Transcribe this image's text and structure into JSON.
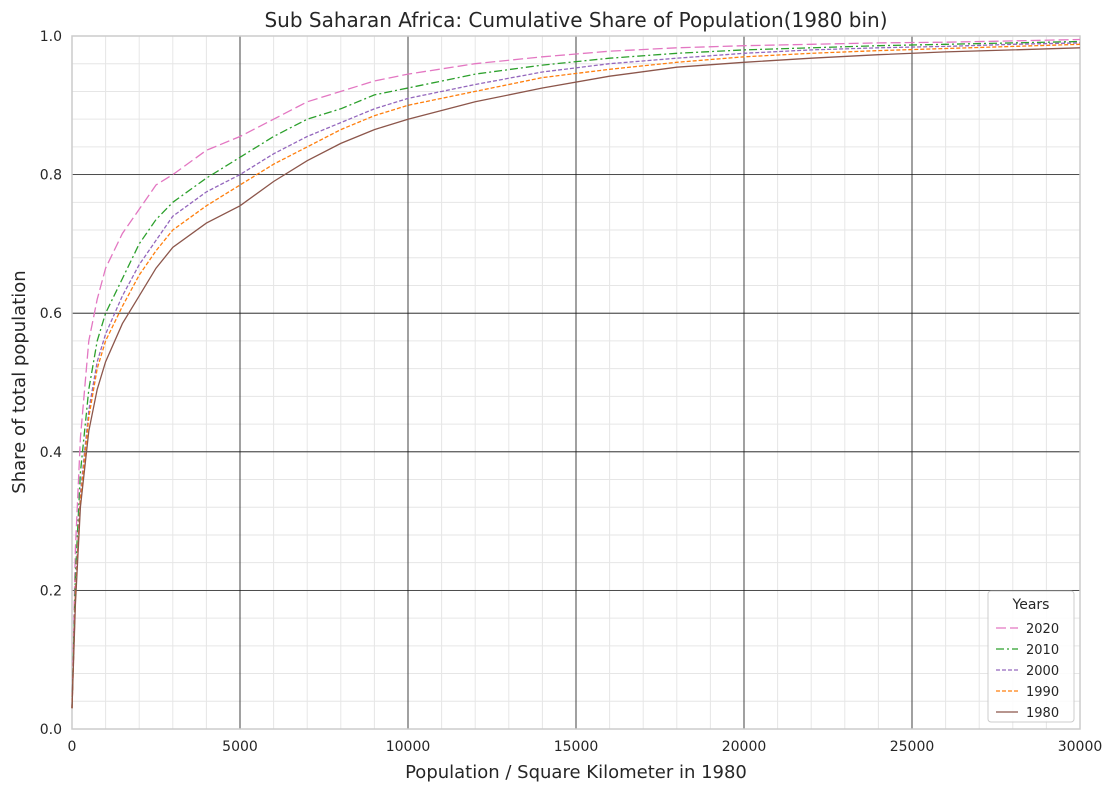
{
  "chart_data": {
    "type": "line",
    "title": "Sub Saharan Africa: Cumulative Share of Population(1980 bin)",
    "xlabel": "Population / Square Kilometer in 1980",
    "ylabel": "Share of total population",
    "xlim": [
      0,
      30000
    ],
    "ylim": [
      0,
      1.0
    ],
    "x_ticks": [
      0,
      5000,
      10000,
      15000,
      20000,
      25000,
      30000
    ],
    "x_tick_labels": [
      "0",
      "5000",
      "10000",
      "15000",
      "20000",
      "25000",
      "30000"
    ],
    "y_ticks": [
      0,
      0.2,
      0.4,
      0.6,
      0.8,
      1.0
    ],
    "y_tick_labels": [
      "0.0",
      "0.2",
      "0.4",
      "0.6",
      "0.8",
      "1.0"
    ],
    "grid": true,
    "minor_grid": true,
    "legend": {
      "title": "Years",
      "position": "lower-right"
    },
    "x": [
      0,
      100,
      250,
      500,
      750,
      1000,
      1500,
      2000,
      2500,
      3000,
      4000,
      5000,
      6000,
      7000,
      8000,
      9000,
      10000,
      12000,
      14000,
      16000,
      18000,
      20000,
      22000,
      24000,
      26000,
      28000,
      30000
    ],
    "series": [
      {
        "name": "2020",
        "color": "#e377c2",
        "dash": "10,4",
        "values": [
          0.03,
          0.26,
          0.42,
          0.56,
          0.62,
          0.665,
          0.715,
          0.75,
          0.785,
          0.8,
          0.835,
          0.855,
          0.88,
          0.905,
          0.92,
          0.935,
          0.945,
          0.96,
          0.97,
          0.978,
          0.983,
          0.986,
          0.988,
          0.99,
          0.991,
          0.993,
          0.995
        ]
      },
      {
        "name": "2010",
        "color": "#2ca02c",
        "dash": "8,3,2,3",
        "values": [
          0.03,
          0.22,
          0.37,
          0.49,
          0.56,
          0.6,
          0.65,
          0.7,
          0.735,
          0.76,
          0.795,
          0.825,
          0.855,
          0.88,
          0.895,
          0.915,
          0.925,
          0.945,
          0.958,
          0.968,
          0.975,
          0.98,
          0.983,
          0.986,
          0.988,
          0.99,
          0.992
        ]
      },
      {
        "name": "2000",
        "color": "#9467bd",
        "dash": "4,2",
        "values": [
          0.03,
          0.2,
          0.34,
          0.46,
          0.53,
          0.57,
          0.625,
          0.67,
          0.705,
          0.74,
          0.775,
          0.8,
          0.83,
          0.855,
          0.875,
          0.895,
          0.91,
          0.93,
          0.948,
          0.96,
          0.968,
          0.975,
          0.98,
          0.983,
          0.985,
          0.988,
          0.99
        ]
      },
      {
        "name": "1990",
        "color": "#ff7f0e",
        "dash": "4,2",
        "values": [
          0.03,
          0.19,
          0.33,
          0.45,
          0.52,
          0.56,
          0.61,
          0.655,
          0.69,
          0.72,
          0.755,
          0.785,
          0.815,
          0.84,
          0.865,
          0.885,
          0.9,
          0.92,
          0.94,
          0.952,
          0.962,
          0.97,
          0.975,
          0.979,
          0.982,
          0.985,
          0.988
        ]
      },
      {
        "name": "1980",
        "color": "#8c564b",
        "dash": "",
        "values": [
          0.03,
          0.18,
          0.32,
          0.43,
          0.49,
          0.53,
          0.585,
          0.625,
          0.665,
          0.695,
          0.73,
          0.755,
          0.79,
          0.82,
          0.845,
          0.865,
          0.88,
          0.905,
          0.925,
          0.942,
          0.955,
          0.962,
          0.968,
          0.973,
          0.977,
          0.98,
          0.983
        ]
      }
    ]
  }
}
